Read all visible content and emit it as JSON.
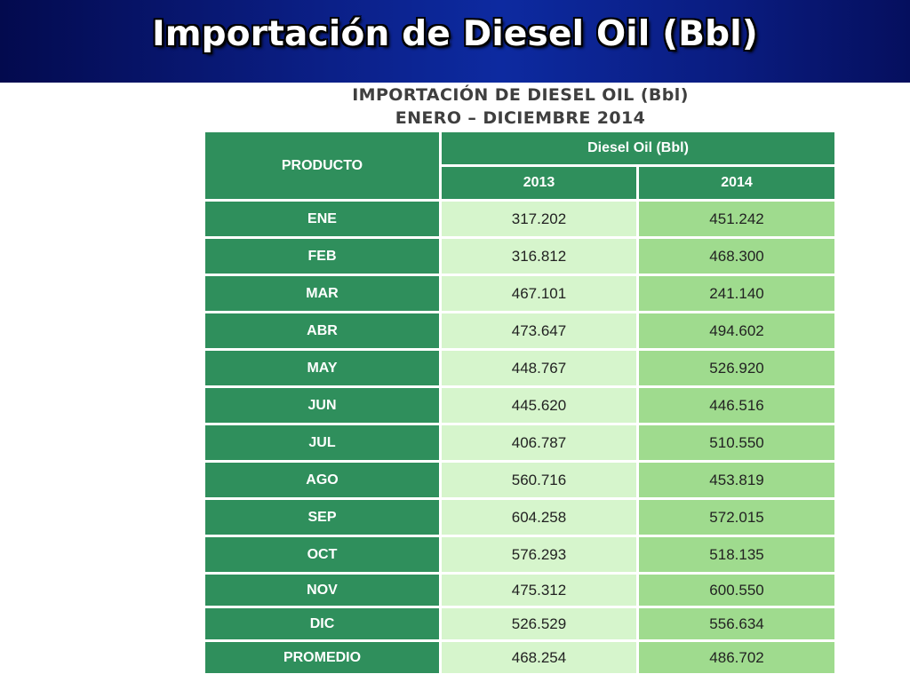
{
  "slide": {
    "title": "Importación de Diesel Oil (Bbl)"
  },
  "table": {
    "title_line1": "IMPORTACIÓN DE DIESEL OIL (Bbl)",
    "title_line2": "ENERO – DICIEMBRE 2014",
    "header_product": "PRODUCTO",
    "header_group": "Diesel Oil (Bbl)",
    "header_2013": "2013",
    "header_2014": "2014",
    "colors": {
      "header_bg": "#2f8f5c",
      "col2013_bg": "#d6f5cc",
      "col2014_bg": "#9fdb8e",
      "banner_bg": "#0b1f86"
    }
  },
  "chart_data": {
    "type": "table",
    "title": "IMPORTACIÓN DE DIESEL OIL (Bbl) ENERO – DICIEMBRE 2014",
    "columns": [
      "PRODUCTO",
      "2013",
      "2014"
    ],
    "rows": [
      {
        "label": "ENE",
        "y2013": "317.202",
        "y2014": "451.242"
      },
      {
        "label": "FEB",
        "y2013": "316.812",
        "y2014": "468.300"
      },
      {
        "label": "MAR",
        "y2013": "467.101",
        "y2014": "241.140"
      },
      {
        "label": "ABR",
        "y2013": "473.647",
        "y2014": "494.602"
      },
      {
        "label": "MAY",
        "y2013": "448.767",
        "y2014": "526.920"
      },
      {
        "label": "JUN",
        "y2013": "445.620",
        "y2014": "446.516"
      },
      {
        "label": "JUL",
        "y2013": "406.787",
        "y2014": "510.550"
      },
      {
        "label": "AGO",
        "y2013": "560.716",
        "y2014": "453.819"
      },
      {
        "label": "SEP",
        "y2013": "604.258",
        "y2014": "572.015"
      },
      {
        "label": "OCT",
        "y2013": "576.293",
        "y2014": "518.135"
      },
      {
        "label": "NOV",
        "y2013": "475.312",
        "y2014": "600.550"
      },
      {
        "label": "DIC",
        "y2013": "526.529",
        "y2014": "556.634"
      },
      {
        "label": "PROMEDIO",
        "y2013": "468.254",
        "y2014": "486.702"
      }
    ]
  }
}
